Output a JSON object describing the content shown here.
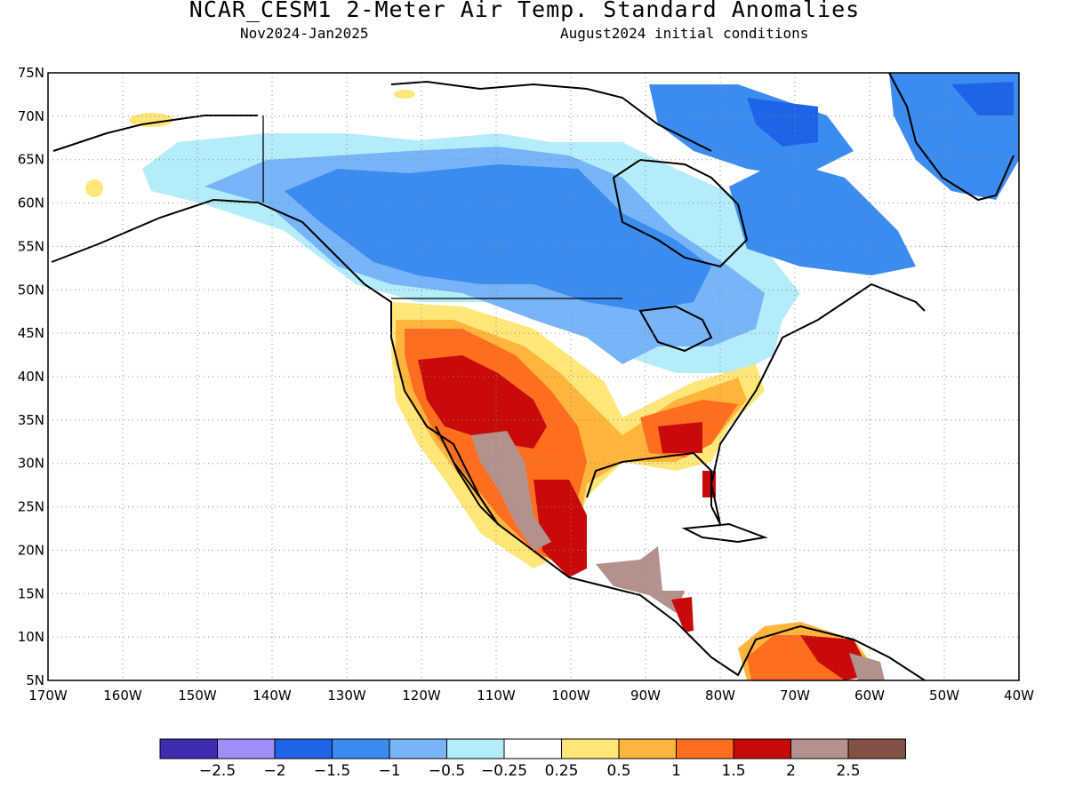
{
  "header": {
    "title": "NCAR_CESM1 2-Meter Air Temp. Standard Anomalies",
    "period": "Nov2024-Jan2025",
    "conditions": "August2024 initial conditions"
  },
  "map": {
    "lat_ticks": [
      "75N",
      "70N",
      "65N",
      "60N",
      "55N",
      "50N",
      "45N",
      "40N",
      "35N",
      "30N",
      "25N",
      "20N",
      "15N",
      "10N",
      "5N"
    ],
    "lon_ticks": [
      "170W",
      "160W",
      "150W",
      "140W",
      "130W",
      "120W",
      "110W",
      "100W",
      "90W",
      "80W",
      "70W",
      "60W",
      "50W",
      "40W"
    ],
    "grid": "dotted"
  },
  "colorbar": {
    "colors": [
      "#3d2db0",
      "#a08cfa",
      "#1f64e6",
      "#3c8cf0",
      "#78b4f8",
      "#b4ecfa",
      "#ffffff",
      "#ffe678",
      "#ffb43c",
      "#ff6e1e",
      "#c80a0a",
      "#b4918c",
      "#825046"
    ],
    "labels": [
      "-2.5",
      "-2",
      "-1.5",
      "-1",
      "-0.5",
      "-0.25",
      "0.25",
      "0.5",
      "1",
      "1.5",
      "2",
      "2.5"
    ]
  }
}
